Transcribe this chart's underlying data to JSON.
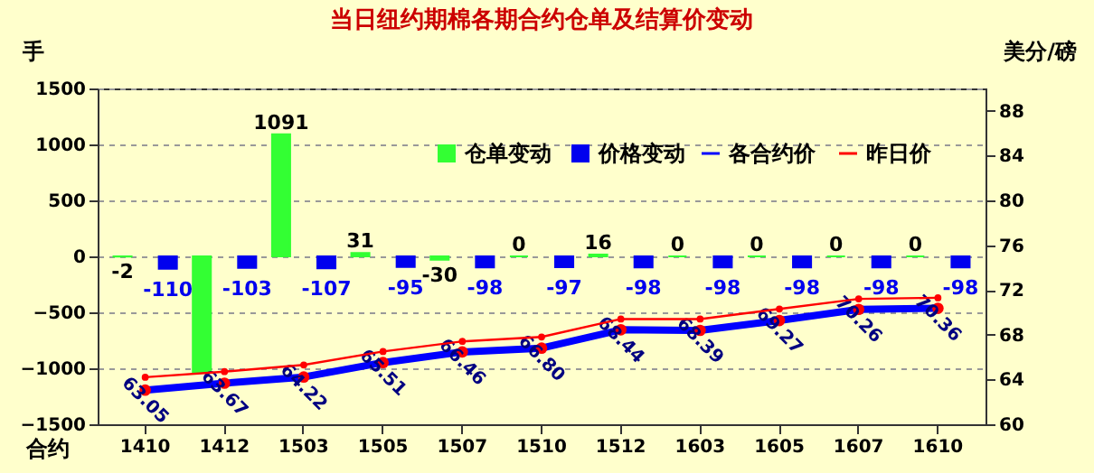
{
  "chart_data": {
    "type": "bar",
    "title": "当日纽约期棉各期合约仓单及结算价变动",
    "xlabel": "合约",
    "ylabel": "手",
    "y2label": "美分/磅",
    "categories": [
      "1410",
      "1412",
      "1503",
      "1505",
      "1507",
      "1510",
      "1512",
      "1603",
      "1605",
      "1607",
      "1610"
    ],
    "series": [
      {
        "name": "仓单变动",
        "color": "#33ff33",
        "values": [
          -2,
          -1040,
          1091,
          31,
          -30,
          0,
          16,
          0,
          0,
          0,
          0
        ],
        "value_labels": [
          "-2",
          null,
          "1091",
          "31",
          "-30",
          "0",
          "16",
          "0",
          "0",
          "0",
          "0"
        ]
      },
      {
        "name": "价格变动",
        "color": "#0000ee",
        "values": [
          -110,
          -103,
          -107,
          -95,
          -98,
          -97,
          -98,
          -98,
          -98,
          -98,
          -98
        ],
        "value_labels": [
          "-110",
          "-103",
          "-107",
          "-95",
          "-98",
          "-97",
          "-98",
          "-98",
          "-98",
          "-98",
          "-98"
        ]
      },
      {
        "name": "各合约价",
        "type": "line",
        "axis": "y2",
        "color": "#0000ff",
        "marker": "circle",
        "values": [
          63.05,
          63.67,
          64.22,
          65.51,
          66.46,
          66.8,
          68.44,
          68.39,
          69.27,
          70.26,
          70.36
        ],
        "value_labels": [
          "63.05",
          "63.67",
          "64.22",
          "65.51",
          "66.46",
          "66.80",
          "68.44",
          "68.39",
          "69.27",
          "70.26",
          "70.36"
        ]
      },
      {
        "name": "昨日价",
        "type": "line",
        "axis": "y2",
        "color": "#ff0000",
        "marker": "circle",
        "values": [
          64.2,
          64.7,
          65.3,
          66.5,
          67.4,
          67.8,
          69.4,
          69.4,
          70.3,
          71.2,
          71.3
        ]
      }
    ],
    "ylim": [
      -1500,
      1500
    ],
    "yticks": [
      -1500,
      -1000,
      -500,
      0,
      500,
      1000,
      1500
    ],
    "y2lim": [
      60,
      90
    ],
    "y2ticks": [
      60,
      64,
      68,
      72,
      76,
      80,
      84,
      88
    ],
    "grid": "y",
    "legend": "top right"
  }
}
